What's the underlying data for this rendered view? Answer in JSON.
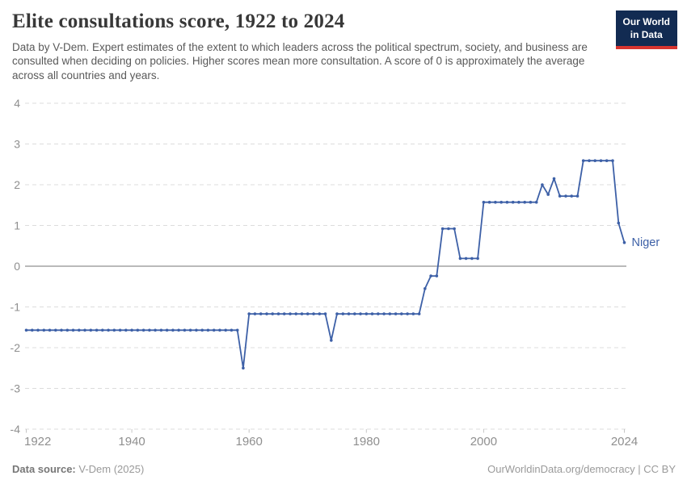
{
  "header": {
    "title": "Elite consultations score, 1922 to 2024",
    "subtitle": "Data by V-Dem. Expert estimates of the extent to which leaders across the political spectrum, society, and business are consulted when deciding on policies. Higher scores mean more consultation. A score of 0 is approximately the average across all countries and years.",
    "logo": {
      "line1": "Our World",
      "line2": "in Data",
      "bg_color": "#122b52",
      "accent_color": "#d7342f"
    }
  },
  "chart_data": {
    "type": "line",
    "title": "Elite consultations score, 1922 to 2024",
    "entity": "Niger",
    "x_start": 1922,
    "x_end": 2024,
    "xlim": [
      1922,
      2024
    ],
    "ylim": [
      -4,
      4
    ],
    "xticks": [
      1922,
      1940,
      1960,
      1980,
      2000,
      2024
    ],
    "yticks": [
      4,
      3,
      2,
      1,
      0,
      -1,
      -2,
      -3,
      -4
    ],
    "grid": "horizontal-dashed",
    "zero_line": true,
    "line_color": "#3d60a7",
    "grid_color": "#dcdcdc",
    "zero_line_color": "#a3a3a3",
    "tick_label_color": "#8f8f8f",
    "series": [
      {
        "name": "Niger",
        "values": [
          -1.57,
          -1.57,
          -1.57,
          -1.57,
          -1.57,
          -1.57,
          -1.57,
          -1.57,
          -1.57,
          -1.57,
          -1.57,
          -1.57,
          -1.57,
          -1.57,
          -1.57,
          -1.57,
          -1.57,
          -1.57,
          -1.57,
          -1.57,
          -1.57,
          -1.57,
          -1.57,
          -1.57,
          -1.57,
          -1.57,
          -1.57,
          -1.57,
          -1.57,
          -1.57,
          -1.57,
          -1.57,
          -1.57,
          -1.57,
          -1.57,
          -1.57,
          -1.57,
          -2.5,
          -1.17,
          -1.17,
          -1.17,
          -1.17,
          -1.17,
          -1.17,
          -1.17,
          -1.17,
          -1.17,
          -1.17,
          -1.17,
          -1.17,
          -1.17,
          -1.17,
          -1.82,
          -1.17,
          -1.17,
          -1.17,
          -1.17,
          -1.17,
          -1.17,
          -1.17,
          -1.17,
          -1.17,
          -1.17,
          -1.17,
          -1.17,
          -1.17,
          -1.17,
          -1.17,
          -0.55,
          -0.24,
          -0.24,
          0.92,
          0.92,
          0.92,
          0.19,
          0.19,
          0.19,
          0.19,
          1.57,
          1.57,
          1.57,
          1.57,
          1.57,
          1.57,
          1.57,
          1.57,
          1.57,
          1.57,
          2.0,
          1.76,
          2.15,
          1.72,
          1.72,
          1.72,
          1.72,
          2.59,
          2.59,
          2.59,
          2.59,
          2.59,
          2.59,
          1.06,
          0.58
        ]
      }
    ]
  },
  "footer": {
    "source_label": "Data source:",
    "source_value": "V-Dem (2025)",
    "license": "OurWorldinData.org/democracy | CC BY"
  }
}
